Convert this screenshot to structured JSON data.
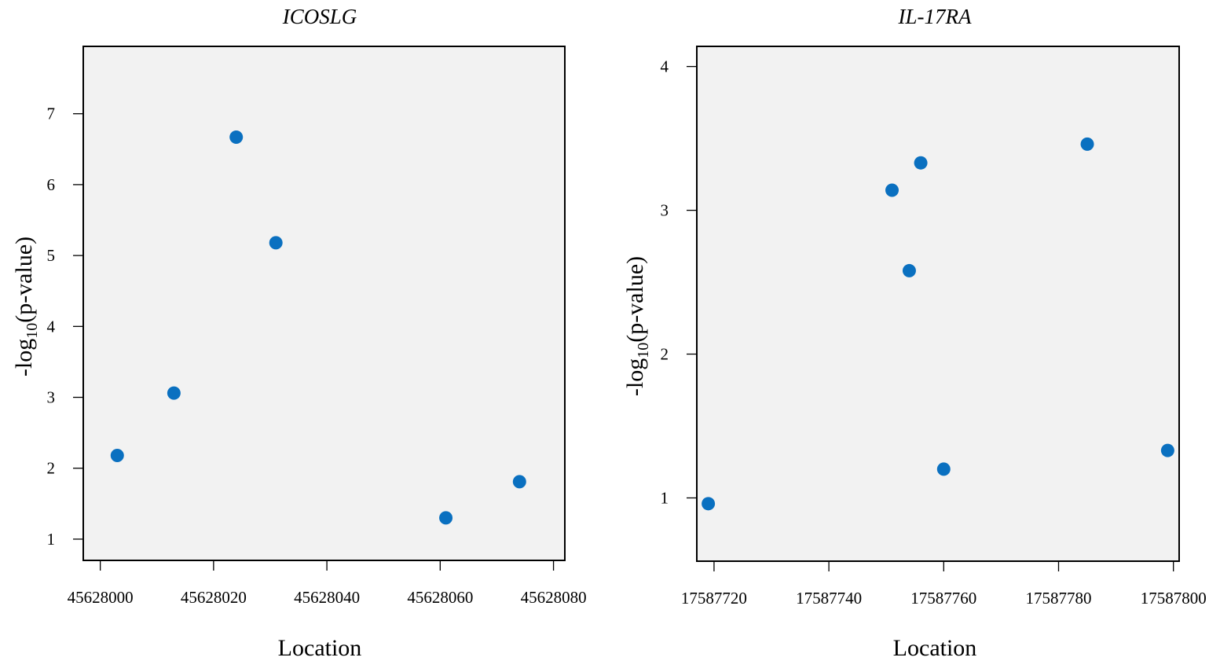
{
  "chart_data": [
    {
      "type": "scatter",
      "title": "ICOSLG",
      "xlabel": "Location",
      "ylabel_prefix": "-log",
      "ylabel_sub": "10",
      "ylabel_suffix": "(p-value)",
      "xlim": [
        45627997,
        45628082
      ],
      "ylim": [
        0.7,
        7.95
      ],
      "xticks": [
        45628000,
        45628020,
        45628040,
        45628060,
        45628080
      ],
      "xtick_labels": [
        "45628000",
        "45628020",
        "45628040",
        "45628060",
        "45628080"
      ],
      "yticks": [
        1,
        2,
        3,
        4,
        5,
        6,
        7
      ],
      "ytick_labels": [
        "1",
        "2",
        "3",
        "4",
        "5",
        "6",
        "7"
      ],
      "points": [
        {
          "x": 45628003,
          "y": 2.18
        },
        {
          "x": 45628013,
          "y": 3.06
        },
        {
          "x": 45628024,
          "y": 6.67
        },
        {
          "x": 45628031,
          "y": 5.18
        },
        {
          "x": 45628061,
          "y": 1.3
        },
        {
          "x": 45628074,
          "y": 1.81
        }
      ],
      "point_color": "#0a70c0",
      "background": "#f2f2f2",
      "grid": false
    },
    {
      "type": "scatter",
      "title": "IL-17RA",
      "xlabel": "Location",
      "ylabel_prefix": "-log",
      "ylabel_sub": "10",
      "ylabel_suffix": "(p-value)",
      "xlim": [
        17587717,
        17587801
      ],
      "ylim": [
        0.56,
        4.14
      ],
      "xticks": [
        17587720,
        17587740,
        17587760,
        17587780,
        17587800
      ],
      "xtick_labels": [
        "17587720",
        "17587740",
        "17587760",
        "17587780",
        "17587800"
      ],
      "yticks": [
        1,
        2,
        3,
        4
      ],
      "ytick_labels": [
        "1",
        "2",
        "3",
        "4"
      ],
      "points": [
        {
          "x": 17587719,
          "y": 0.96
        },
        {
          "x": 17587751,
          "y": 3.14
        },
        {
          "x": 17587754,
          "y": 2.58
        },
        {
          "x": 17587756,
          "y": 3.33
        },
        {
          "x": 17587760,
          "y": 1.2
        },
        {
          "x": 17587785,
          "y": 3.46
        },
        {
          "x": 17587799,
          "y": 1.33
        }
      ],
      "point_color": "#0a70c0",
      "background": "#f2f2f2",
      "grid": false
    }
  ]
}
